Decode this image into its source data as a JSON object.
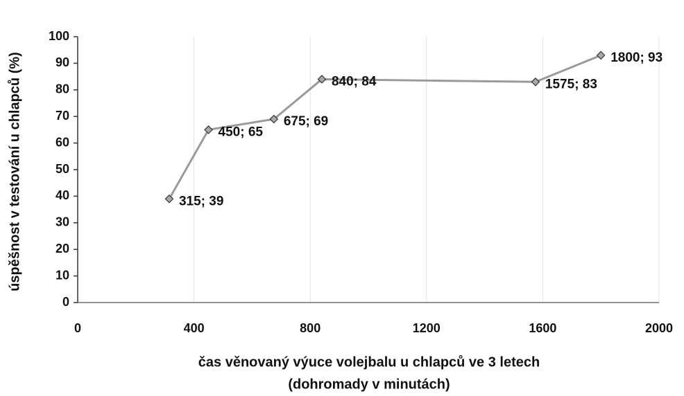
{
  "chart_data": {
    "type": "line",
    "ylabel": "úspěšnost v testování u chlapců (%)",
    "xlabel": [
      "čas věnovaný výuce volejbalu u chlapců ve 3 letech",
      "(dohromady v minutách)"
    ],
    "x": [
      315,
      450,
      675,
      840,
      1575,
      1800
    ],
    "series": [
      {
        "color": "#9a9a9a",
        "values": [
          39,
          65,
          69,
          84,
          83,
          93
        ],
        "value_labels": [
          "315; 39",
          "450; 65",
          "675; 69",
          "840; 84",
          "1575; 83",
          "1800; 93"
        ]
      }
    ],
    "xlim": [
      0,
      2000
    ],
    "xticks": [
      0,
      400,
      800,
      1200,
      1600,
      2000
    ],
    "ylim": [
      0,
      100
    ],
    "yticks": [
      0,
      10,
      20,
      30,
      40,
      50,
      60,
      70,
      80,
      90,
      100
    ],
    "grid": true
  }
}
